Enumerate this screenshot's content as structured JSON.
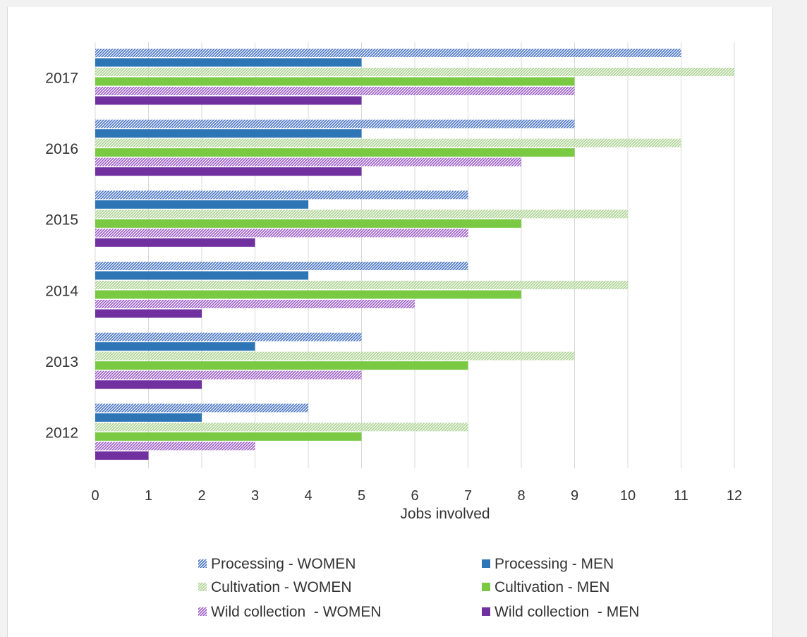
{
  "chart_data": {
    "type": "bar",
    "orientation": "horizontal",
    "categories": [
      "2012",
      "2013",
      "2014",
      "2015",
      "2016",
      "2017"
    ],
    "xlabel": "Jobs involved",
    "xlim": [
      0,
      12
    ],
    "xticks": [
      "0",
      "1",
      "2",
      "3",
      "4",
      "5",
      "6",
      "7",
      "8",
      "9",
      "10",
      "11",
      "12"
    ],
    "grid": "vertical",
    "legend_position": "bottom",
    "series": [
      {
        "name": "Processing - WOMEN",
        "color": "#4472c4",
        "pattern": "hatched",
        "values": [
          4,
          5,
          7,
          7,
          9,
          11
        ]
      },
      {
        "name": "Processing - MEN",
        "color": "#2e75b6",
        "pattern": "solid",
        "values": [
          2,
          3,
          4,
          4,
          5,
          5
        ]
      },
      {
        "name": "Cultivation - WOMEN",
        "color": "#a9d18e",
        "pattern": "hatched",
        "values": [
          7,
          9,
          10,
          10,
          11,
          12
        ]
      },
      {
        "name": "Cultivation - MEN",
        "color": "#7ac943",
        "pattern": "solid",
        "values": [
          5,
          7,
          8,
          8,
          9,
          9
        ]
      },
      {
        "name": "Wild collection  - WOMEN",
        "color": "#9b59c6",
        "pattern": "hatched",
        "values": [
          3,
          5,
          6,
          7,
          8,
          9
        ]
      },
      {
        "name": "Wild collection  - MEN",
        "color": "#7030a0",
        "pattern": "solid",
        "values": [
          1,
          2,
          2,
          3,
          5,
          5
        ]
      }
    ]
  }
}
